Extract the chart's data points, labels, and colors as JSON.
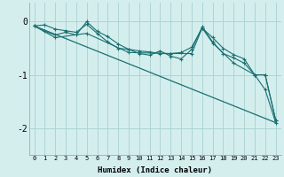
{
  "xlabel": "Humidex (Indice chaleur)",
  "background_color": "#d4eeee",
  "grid_color": "#aed4d4",
  "line_color": "#1a7070",
  "xlim": [
    -0.5,
    23.5
  ],
  "ylim": [
    -2.5,
    0.35
  ],
  "yticks": [
    0,
    -1,
    -2
  ],
  "xticks": [
    0,
    1,
    2,
    3,
    4,
    5,
    6,
    7,
    8,
    9,
    10,
    11,
    12,
    13,
    14,
    15,
    16,
    17,
    18,
    19,
    20,
    21,
    22,
    23
  ],
  "series1_x": [
    0,
    1,
    2,
    3,
    4,
    5,
    6,
    7,
    8,
    9,
    10,
    11,
    12,
    13,
    14,
    15,
    16,
    17,
    18,
    19,
    20,
    21,
    22,
    23
  ],
  "series1_y": [
    -0.08,
    -0.06,
    -0.14,
    -0.17,
    -0.2,
    -0.05,
    -0.22,
    -0.38,
    -0.5,
    -0.52,
    -0.55,
    -0.57,
    -0.6,
    -0.6,
    -0.58,
    -0.48,
    -0.12,
    -0.3,
    -0.5,
    -0.62,
    -0.7,
    -1.0,
    -1.0,
    -1.85
  ],
  "series2_x": [
    0,
    1,
    2,
    3,
    4,
    5,
    6,
    7,
    8,
    9,
    10,
    11,
    12,
    13,
    14,
    15,
    16,
    17,
    18,
    19,
    20,
    21,
    22,
    23
  ],
  "series2_y": [
    -0.08,
    -0.18,
    -0.25,
    -0.2,
    -0.25,
    0.0,
    -0.18,
    -0.28,
    -0.42,
    -0.52,
    -0.6,
    -0.63,
    -0.55,
    -0.65,
    -0.7,
    -0.52,
    -0.1,
    -0.38,
    -0.6,
    -0.68,
    -0.78,
    -1.0,
    -1.0,
    -1.85
  ],
  "series3_x": [
    0,
    2,
    5,
    9,
    13,
    15,
    16,
    17,
    19,
    21,
    22,
    23
  ],
  "series3_y": [
    -0.08,
    -0.3,
    -0.22,
    -0.58,
    -0.6,
    -0.6,
    -0.12,
    -0.4,
    -0.78,
    -1.0,
    -1.28,
    -1.9
  ],
  "line_x": [
    0,
    23
  ],
  "line_y": [
    -0.08,
    -1.9
  ]
}
